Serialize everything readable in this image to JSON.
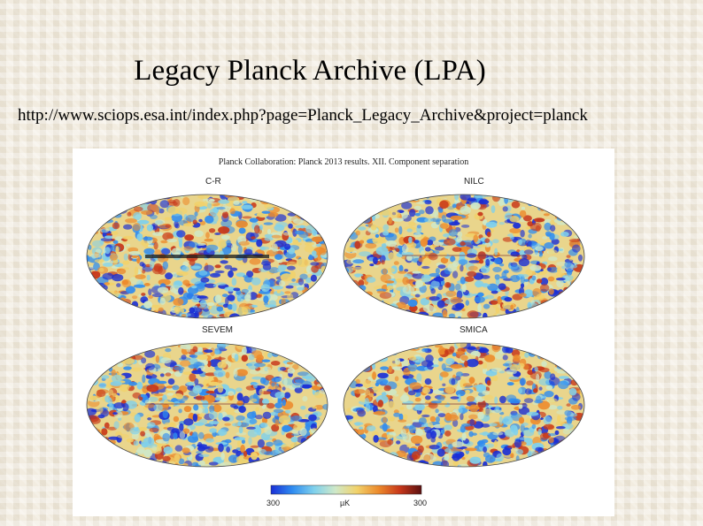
{
  "slide": {
    "title": "Legacy Planck Archive (LPA)",
    "url": "http://www.sciops.esa.int/index.php?page=Planck_Legacy_Archive&project=planck"
  },
  "figure": {
    "caption": "Planck Collaboration: Planck 2013 results. XII. Component separation",
    "maps": [
      {
        "label": "C-R"
      },
      {
        "label": "NILC"
      },
      {
        "label": "SEVEM"
      },
      {
        "label": "SMICA"
      }
    ],
    "colorbar": {
      "min_label": "300",
      "unit_label": "µK",
      "max_label": "300",
      "colors": [
        "#1a2fd6",
        "#2f8cf0",
        "#7fd0ec",
        "#cfe8c8",
        "#f1d26b",
        "#ec8a2c",
        "#c7371a",
        "#5a1010"
      ]
    }
  }
}
